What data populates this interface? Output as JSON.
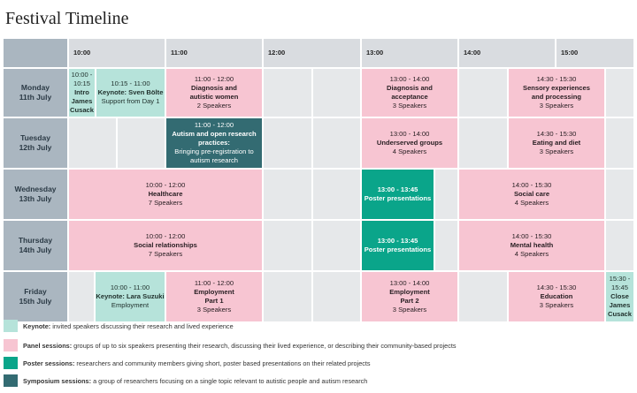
{
  "page": {
    "title": "Festival Timeline"
  },
  "times": [
    "10:00",
    "11:00",
    "12:00",
    "13:00",
    "14:00",
    "15:00"
  ],
  "days": [
    "Monday\n11th July",
    "Tuesday\n12th July",
    "Wednesday\n13th July",
    "Thursday\n14th July",
    "Friday\n15th July"
  ],
  "sessions": {
    "mon_intro": {
      "time": "10:00 -\n10:15",
      "title": "Intro\nJames\nCusack"
    },
    "mon_keynote": {
      "time": "10:15 - 11:00",
      "title": "Keynote: Sven Bölte",
      "sub": "Support from Day 1"
    },
    "mon_diag_women": {
      "time": "11:00 - 12:00",
      "title": "Diagnosis and\nautistic women",
      "sub": "2 Speakers"
    },
    "mon_diag_accept": {
      "time": "13:00 - 14:00",
      "title": "Diagnosis and\nacceptance",
      "sub": "3 Speakers"
    },
    "mon_sensory": {
      "time": "14:30 - 15:30",
      "title": "Sensory experiences\nand processing",
      "sub": "3 Speakers"
    },
    "tue_symposium": {
      "time": "11:00 - 12:00",
      "title": "Autism and open research\npractices:",
      "sub": "Bringing pre-registration to\nautism research"
    },
    "tue_underserved": {
      "time": "13:00 - 14:00",
      "title": "Underserved groups",
      "sub": "4 Speakers"
    },
    "tue_eating": {
      "time": "14:30 - 15:30",
      "title": "Eating and diet",
      "sub": "3 Speakers"
    },
    "wed_healthcare": {
      "time": "10:00 - 12:00",
      "title": "Healthcare",
      "sub": "7 Speakers"
    },
    "wed_poster": {
      "time": "13:00 - 13:45",
      "title": "Poster presentations"
    },
    "wed_social_care": {
      "time": "14:00 - 15:30",
      "title": "Social care",
      "sub": "4 Speakers"
    },
    "thu_relationships": {
      "time": "10:00 - 12:00",
      "title": "Social relationships",
      "sub": "7 Speakers"
    },
    "thu_poster": {
      "time": "13:00 - 13:45",
      "title": "Poster presentations"
    },
    "thu_mental": {
      "time": "14:00 - 15:30",
      "title": "Mental health",
      "sub": "4 Speakers"
    },
    "fri_keynote": {
      "time": "10:00 - 11:00",
      "title": "Keynote: Lara Suzuki",
      "sub": "Employment"
    },
    "fri_employment1": {
      "time": "11:00 - 12:00",
      "title": "Employment\nPart 1",
      "sub": "3 Speakers"
    },
    "fri_employment2": {
      "time": "13:00 - 14:00",
      "title": "Employment\nPart 2",
      "sub": "3 Speakers"
    },
    "fri_education": {
      "time": "14:30 - 15:30",
      "title": "Education",
      "sub": "3 Speakers"
    },
    "fri_close": {
      "time": "15:30 -\n15:45",
      "title": "Close\nJames\nCusack"
    }
  },
  "legend": [
    {
      "label": "Keynote:",
      "text": "invited speakers discussing their research and lived experience",
      "color": "#b6e3da"
    },
    {
      "label": "Panel sessions:",
      "text": "groups of up to six speakers presenting their research, discussing their lived experience, or describing their community-based projects",
      "color": "#f7c5d2"
    },
    {
      "label": "Poster sessions:",
      "text": "researchers and community members giving short, poster based presentations on their related projects",
      "color": "#0aa58a"
    },
    {
      "label": "Symposium sessions:",
      "text": "a group of researchers focusing on a single topic relevant to autistic people and autism research",
      "color": "#336b72"
    }
  ]
}
